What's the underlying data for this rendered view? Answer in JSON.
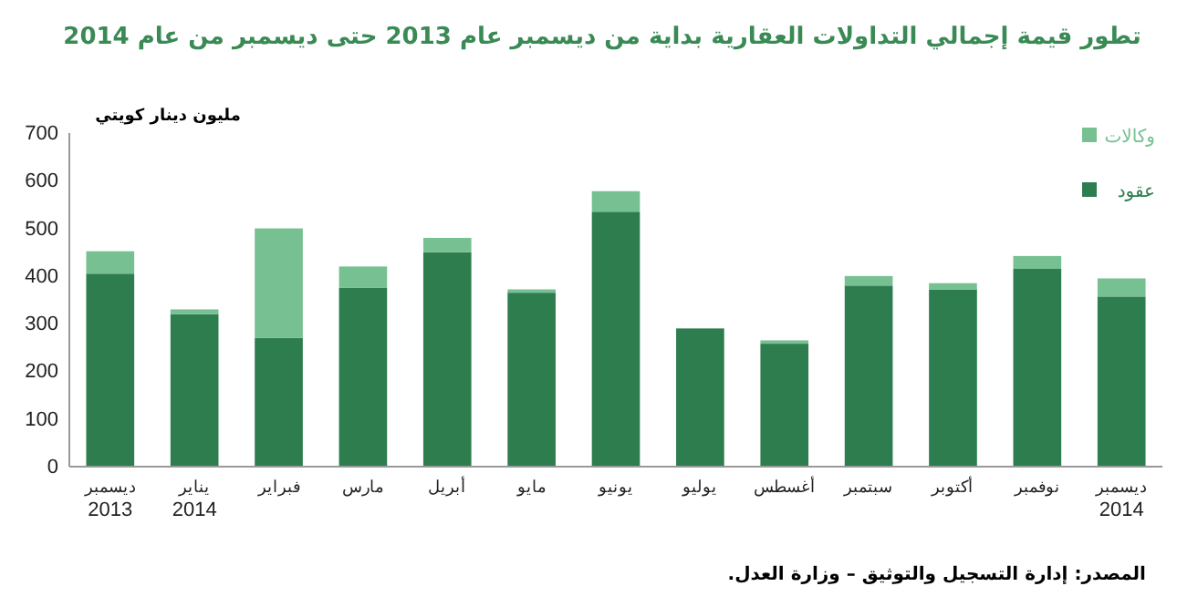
{
  "chart_data": {
    "type": "bar",
    "title": "تطور قيمة إجمالي التداولات العقارية بداية من ديسمبر عام  2013 حتى ديسمبر من عام  2014",
    "ylabel": "مليون دينار كويتي",
    "categories": [
      "ديسمبر\n2013",
      "يناير\n2014",
      "فبراير",
      "مارس",
      "أبريل",
      "مايو",
      "يونيو",
      "يوليو",
      "أغسطس",
      "سبتمبر",
      "أكتوبر",
      "نوفمبر",
      "ديسمبر\n2014"
    ],
    "stacked": true,
    "series": [
      {
        "name": "عقود",
        "color": "#2e7d4f",
        "values": [
          405,
          320,
          270,
          375,
          450,
          365,
          535,
          290,
          258,
          380,
          372,
          415,
          357
        ]
      },
      {
        "name": "وكالات",
        "color": "#76c092",
        "values": [
          47,
          10,
          230,
          45,
          30,
          7,
          43,
          0,
          7,
          20,
          13,
          27,
          38
        ]
      }
    ],
    "ylim": [
      0,
      700
    ],
    "yticks": [
      0,
      100,
      200,
      300,
      400,
      500,
      600,
      700
    ],
    "legend": "top right",
    "annotations": [
      "المصدر: إدارة التسجيل والتوثيق – وزارة العدل."
    ]
  }
}
